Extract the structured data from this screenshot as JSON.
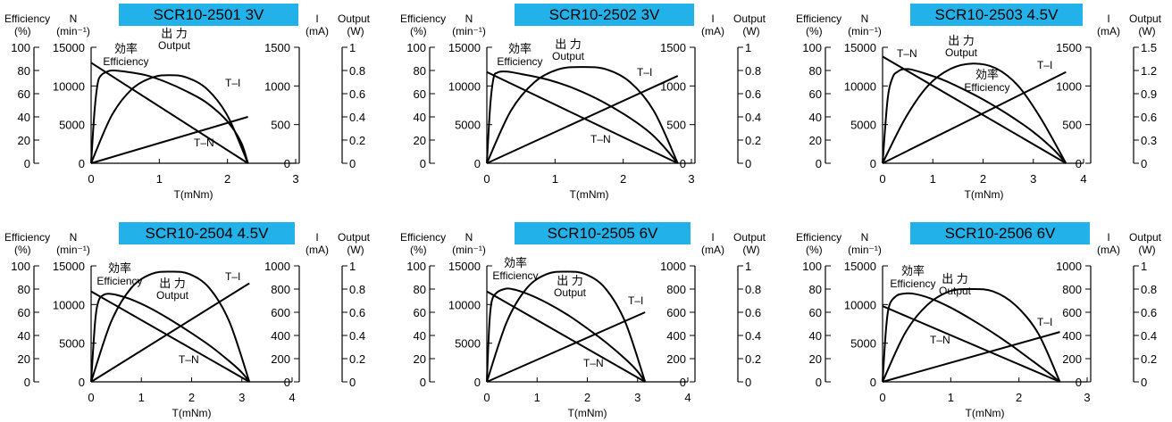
{
  "colors": {
    "title_bg": "#22B1E8",
    "title_text": "#ffffff",
    "line": "#000000"
  },
  "chart_data": [
    {
      "type": "line",
      "title": "SCR10-2501  3V",
      "xlabel": "T(mNm)",
      "xlim": [
        0,
        3
      ],
      "x_ticks": [
        "0",
        "1",
        "2",
        "3"
      ],
      "axis_headers": {
        "eff": [
          "Efficiency",
          "(%)"
        ],
        "n": [
          "N",
          "(min⁻¹)"
        ],
        "i": [
          "I",
          "(mA)"
        ],
        "out": [
          "Output",
          "(W)"
        ]
      },
      "eff_ticks": [
        "0",
        "20",
        "40",
        "60",
        "80",
        "100"
      ],
      "n_ticks": [
        "0",
        "5000",
        "10000",
        "15000"
      ],
      "i_ticks": [
        "0",
        "500",
        "1000",
        "1500"
      ],
      "out_ticks": [
        "0",
        "0.2",
        "0.4",
        "0.6",
        "0.8",
        "1"
      ],
      "ylim": {
        "eff": [
          0,
          100
        ],
        "n": [
          0,
          15000
        ],
        "i": [
          0,
          1500
        ],
        "out": [
          0,
          1
        ]
      },
      "labels": {
        "efficiency_jp": "効率",
        "efficiency": "Efficiency",
        "output_jp": "出 力",
        "output": "Output",
        "ti": "T–I",
        "tn": "T–N"
      },
      "series": [
        {
          "name": "T–N",
          "axis": "n",
          "x": [
            0,
            2.3
          ],
          "y": [
            13000,
            0
          ]
        },
        {
          "name": "T–I",
          "axis": "i",
          "x": [
            0,
            2.3
          ],
          "y": [
            0,
            600
          ]
        },
        {
          "name": "Output",
          "axis": "out",
          "x": [
            0,
            0.3,
            0.6,
            0.9,
            1.15,
            1.4,
            1.7,
            2.0,
            2.3
          ],
          "y": [
            0,
            0.41,
            0.64,
            0.74,
            0.76,
            0.74,
            0.64,
            0.41,
            0
          ]
        },
        {
          "name": "Efficiency",
          "axis": "eff",
          "x": [
            0,
            0.05,
            0.1,
            0.15,
            0.2,
            0.3,
            0.5,
            0.8,
            1.1,
            1.4,
            1.7,
            2.0,
            2.2,
            2.3
          ],
          "y": [
            0,
            45,
            70,
            76,
            78,
            80,
            79,
            76,
            70,
            62,
            52,
            36,
            18,
            0
          ]
        }
      ]
    },
    {
      "type": "line",
      "title": "SCR10-2502  3V",
      "xlabel": "T(mNm)",
      "xlim": [
        0,
        3
      ],
      "x_ticks": [
        "0",
        "1",
        "2",
        "3"
      ],
      "axis_headers": {
        "eff": [
          "Efficiency",
          "(%)"
        ],
        "n": [
          "N",
          "(min⁻¹)"
        ],
        "i": [
          "I",
          "(mA)"
        ],
        "out": [
          "Output",
          "(W)"
        ]
      },
      "eff_ticks": [
        "0",
        "20",
        "40",
        "60",
        "80",
        "100"
      ],
      "n_ticks": [
        "0",
        "5000",
        "10000",
        "15000"
      ],
      "i_ticks": [
        "0",
        "500",
        "1000",
        "1500"
      ],
      "out_ticks": [
        "0",
        "0.2",
        "0.4",
        "0.6",
        "0.8",
        "1"
      ],
      "ylim": {
        "eff": [
          0,
          100
        ],
        "n": [
          0,
          15000
        ],
        "i": [
          0,
          1500
        ],
        "out": [
          0,
          1
        ]
      },
      "labels": {
        "efficiency_jp": "効率",
        "efficiency": "Efficiency",
        "output_jp": "出 力",
        "output": "Output",
        "ti": "T–I",
        "tn": "T–N"
      },
      "series": [
        {
          "name": "T–N",
          "axis": "n",
          "x": [
            0,
            2.8
          ],
          "y": [
            11800,
            0
          ]
        },
        {
          "name": "T–I",
          "axis": "i",
          "x": [
            0,
            2.8
          ],
          "y": [
            0,
            1130
          ]
        },
        {
          "name": "Output",
          "axis": "out",
          "x": [
            0,
            0.35,
            0.7,
            1.05,
            1.4,
            1.75,
            2.1,
            2.45,
            2.8
          ],
          "y": [
            0,
            0.45,
            0.7,
            0.81,
            0.83,
            0.81,
            0.7,
            0.45,
            0
          ]
        },
        {
          "name": "Efficiency",
          "axis": "eff",
          "x": [
            0,
            0.05,
            0.1,
            0.15,
            0.2,
            0.3,
            0.5,
            0.9,
            1.3,
            1.7,
            2.1,
            2.4,
            2.6,
            2.8
          ],
          "y": [
            0,
            50,
            74,
            78,
            79,
            79,
            77,
            72,
            64,
            53,
            39,
            26,
            14,
            0
          ]
        }
      ]
    },
    {
      "type": "line",
      "title": "SCR10-2503  4.5V",
      "xlabel": "T(mNm)",
      "xlim": [
        0,
        4
      ],
      "x_ticks": [
        "0",
        "1",
        "2",
        "3",
        "4"
      ],
      "axis_headers": {
        "eff": [
          "Efficiency",
          "(%)"
        ],
        "n": [
          "N",
          "(min⁻¹)"
        ],
        "i": [
          "I",
          "(mA)"
        ],
        "out": [
          "Output",
          "(W)"
        ]
      },
      "eff_ticks": [
        "0",
        "20",
        "40",
        "60",
        "80",
        "100"
      ],
      "n_ticks": [
        "0",
        "5000",
        "10000",
        "15000"
      ],
      "i_ticks": [
        "0",
        "500",
        "1000",
        "1500"
      ],
      "out_ticks": [
        "0",
        "0.3",
        "0.6",
        "0.9",
        "1.2",
        "1.5"
      ],
      "ylim": {
        "eff": [
          0,
          100
        ],
        "n": [
          0,
          15000
        ],
        "i": [
          0,
          1500
        ],
        "out": [
          0,
          1.5
        ]
      },
      "labels": {
        "efficiency_jp": "効率",
        "efficiency": "Efficiency",
        "output_jp": "出 力",
        "output": "Output",
        "ti": "T–I",
        "tn": "T–N"
      },
      "series": [
        {
          "name": "T–N",
          "axis": "n",
          "x": [
            0,
            3.65
          ],
          "y": [
            13800,
            0
          ]
        },
        {
          "name": "T–I",
          "axis": "i",
          "x": [
            0,
            3.65
          ],
          "y": [
            0,
            1180
          ]
        },
        {
          "name": "Output",
          "axis": "out",
          "x": [
            0,
            0.45,
            0.9,
            1.35,
            1.8,
            2.25,
            2.7,
            3.15,
            3.65
          ],
          "y": [
            0,
            0.58,
            1.0,
            1.22,
            1.29,
            1.23,
            1.0,
            0.58,
            0
          ]
        },
        {
          "name": "Efficiency",
          "axis": "eff",
          "x": [
            0,
            0.1,
            0.2,
            0.3,
            0.4,
            0.55,
            0.8,
            1.2,
            1.6,
            2.0,
            2.5,
            3.0,
            3.4,
            3.65
          ],
          "y": [
            0,
            55,
            74,
            79,
            81,
            81,
            78,
            72,
            64,
            55,
            42,
            27,
            12,
            0
          ]
        }
      ]
    },
    {
      "type": "line",
      "title": "SCR10-2504  4.5V",
      "xlabel": "T(mNm)",
      "xlim": [
        0,
        4
      ],
      "x_ticks": [
        "0",
        "1",
        "2",
        "3",
        "4"
      ],
      "axis_headers": {
        "eff": [
          "Efficiency",
          "(%)"
        ],
        "n": [
          "N",
          "(min⁻¹)"
        ],
        "i": [
          "I",
          "(mA)"
        ],
        "out": [
          "Output",
          "(W)"
        ]
      },
      "eff_ticks": [
        "0",
        "20",
        "40",
        "60",
        "80",
        "100"
      ],
      "n_ticks": [
        "0",
        "5000",
        "10000",
        "15000"
      ],
      "i_ticks": [
        "0",
        "200",
        "400",
        "600",
        "800",
        "1000"
      ],
      "out_ticks": [
        "0",
        "0.2",
        "0.4",
        "0.6",
        "0.8",
        "1"
      ],
      "ylim": {
        "eff": [
          0,
          100
        ],
        "n": [
          0,
          15000
        ],
        "i": [
          0,
          1000
        ],
        "out": [
          0,
          1
        ]
      },
      "labels": {
        "efficiency_jp": "効率",
        "efficiency": "Efficiency",
        "output_jp": "出 力",
        "output": "Output",
        "ti": "T–I",
        "tn": "T–N"
      },
      "series": [
        {
          "name": "T–N",
          "axis": "n",
          "x": [
            0,
            3.15
          ],
          "y": [
            11700,
            0
          ]
        },
        {
          "name": "T–I",
          "axis": "i",
          "x": [
            0,
            3.15
          ],
          "y": [
            0,
            850
          ]
        },
        {
          "name": "Output",
          "axis": "out",
          "x": [
            0,
            0.4,
            0.8,
            1.2,
            1.58,
            1.95,
            2.35,
            2.75,
            3.15
          ],
          "y": [
            0,
            0.52,
            0.81,
            0.93,
            0.95,
            0.93,
            0.81,
            0.52,
            0
          ]
        },
        {
          "name": "Efficiency",
          "axis": "eff",
          "x": [
            0,
            0.08,
            0.15,
            0.25,
            0.35,
            0.5,
            0.8,
            1.2,
            1.6,
            2.0,
            2.4,
            2.8,
            3.0,
            3.15
          ],
          "y": [
            0,
            52,
            70,
            75,
            76,
            75,
            71,
            63,
            53,
            42,
            30,
            16,
            8,
            0
          ]
        }
      ]
    },
    {
      "type": "line",
      "title": "SCR10-2505  6V",
      "xlabel": "T(mNm)",
      "xlim": [
        0,
        4
      ],
      "x_ticks": [
        "0",
        "1",
        "2",
        "3",
        "4"
      ],
      "axis_headers": {
        "eff": [
          "Efficiency",
          "(%)"
        ],
        "n": [
          "N",
          "(min⁻¹)"
        ],
        "i": [
          "I",
          "(mA)"
        ],
        "out": [
          "Output",
          "(W)"
        ]
      },
      "eff_ticks": [
        "0",
        "20",
        "40",
        "60",
        "80",
        "100"
      ],
      "n_ticks": [
        "0",
        "5000",
        "10000",
        "15000"
      ],
      "i_ticks": [
        "0",
        "200",
        "400",
        "600",
        "800",
        "1000"
      ],
      "out_ticks": [
        "0",
        "0.2",
        "0.4",
        "0.6",
        "0.8",
        "1"
      ],
      "ylim": {
        "eff": [
          0,
          100
        ],
        "n": [
          0,
          15000
        ],
        "i": [
          0,
          1000
        ],
        "out": [
          0,
          1
        ]
      },
      "labels": {
        "efficiency_jp": "効率",
        "efficiency": "Efficiency",
        "output_jp": "出 力",
        "output": "Output",
        "ti": "T–I",
        "tn": "T–N"
      },
      "series": [
        {
          "name": "T–N",
          "axis": "n",
          "x": [
            0,
            3.15
          ],
          "y": [
            11700,
            0
          ]
        },
        {
          "name": "T–I",
          "axis": "i",
          "x": [
            0,
            3.15
          ],
          "y": [
            0,
            600
          ]
        },
        {
          "name": "Output",
          "axis": "out",
          "x": [
            0,
            0.4,
            0.8,
            1.2,
            1.58,
            1.95,
            2.35,
            2.75,
            3.15
          ],
          "y": [
            0,
            0.52,
            0.81,
            0.93,
            0.95,
            0.93,
            0.81,
            0.52,
            0
          ]
        },
        {
          "name": "Efficiency",
          "axis": "eff",
          "x": [
            0,
            0.05,
            0.1,
            0.2,
            0.35,
            0.5,
            0.8,
            1.2,
            1.6,
            2.0,
            2.4,
            2.8,
            3.0,
            3.15
          ],
          "y": [
            0,
            50,
            70,
            77,
            80,
            80,
            76,
            68,
            58,
            46,
            33,
            18,
            9,
            0
          ]
        }
      ]
    },
    {
      "type": "line",
      "title": "SCR10-2506  6V",
      "xlabel": "T(mNm)",
      "xlim": [
        0,
        3
      ],
      "x_ticks": [
        "0",
        "1",
        "2",
        "3"
      ],
      "axis_headers": {
        "eff": [
          "Efficiency",
          "(%)"
        ],
        "n": [
          "N",
          "(min⁻¹)"
        ],
        "i": [
          "I",
          "(mA)"
        ],
        "out": [
          "Output",
          "(W)"
        ]
      },
      "eff_ticks": [
        "0",
        "20",
        "40",
        "60",
        "80",
        "100"
      ],
      "n_ticks": [
        "0",
        "5000",
        "10000",
        "15000"
      ],
      "i_ticks": [
        "0",
        "200",
        "400",
        "600",
        "800",
        "1000"
      ],
      "out_ticks": [
        "0",
        "0.2",
        "0.4",
        "0.6",
        "0.8",
        "1"
      ],
      "ylim": {
        "eff": [
          0,
          100
        ],
        "n": [
          0,
          15000
        ],
        "i": [
          0,
          1000
        ],
        "out": [
          0,
          1
        ]
      },
      "labels": {
        "efficiency_jp": "効率",
        "efficiency": "Efficiency",
        "output_jp": "出 力",
        "output": "Output",
        "ti": "T–I",
        "tn": "T–N"
      },
      "series": [
        {
          "name": "T–N",
          "axis": "n",
          "x": [
            0,
            2.6
          ],
          "y": [
            9800,
            0
          ]
        },
        {
          "name": "T–I",
          "axis": "i",
          "x": [
            0,
            2.6
          ],
          "y": [
            0,
            430
          ]
        },
        {
          "name": "Output",
          "axis": "out",
          "x": [
            0,
            0.33,
            0.65,
            0.98,
            1.3,
            1.62,
            1.95,
            2.28,
            2.6
          ],
          "y": [
            0,
            0.42,
            0.66,
            0.78,
            0.8,
            0.78,
            0.66,
            0.42,
            0
          ]
        },
        {
          "name": "Efficiency",
          "axis": "eff",
          "x": [
            0,
            0.05,
            0.1,
            0.2,
            0.3,
            0.45,
            0.7,
            1.0,
            1.3,
            1.6,
            1.9,
            2.2,
            2.45,
            2.6
          ],
          "y": [
            0,
            45,
            66,
            74,
            76,
            76,
            72,
            64,
            54,
            43,
            31,
            18,
            7,
            0
          ]
        }
      ]
    }
  ]
}
